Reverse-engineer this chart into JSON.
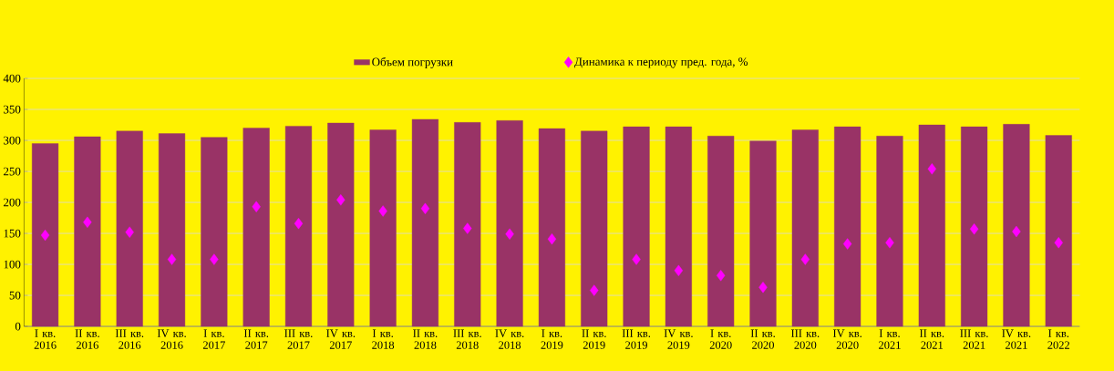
{
  "chart_data": {
    "type": "bar",
    "categories": [
      "I кв. 2016",
      "II кв. 2016",
      "III кв. 2016",
      "IV кв. 2016",
      "I кв. 2017",
      "II кв. 2017",
      "III кв. 2017",
      "IV кв. 2017",
      "I кв. 2018",
      "II кв. 2018",
      "III кв. 2018",
      "IV кв. 2018",
      "I кв. 2019",
      "II кв. 2019",
      "III кв. 2019",
      "IV кв. 2019",
      "I кв. 2020",
      "II кв. 2020",
      "III кв. 2020",
      "IV кв. 2020",
      "I кв. 2021",
      "II кв. 2021",
      "III кв. 2021",
      "IV кв. 2021",
      "I кв. 2022"
    ],
    "series": [
      {
        "name": "Объем погрузки",
        "color": "#993366",
        "values": [
          295,
          306,
          315,
          311,
          305,
          320,
          323,
          328,
          317,
          334,
          329,
          332,
          319,
          315,
          322,
          322,
          307,
          299,
          317,
          322,
          307,
          325,
          322,
          326,
          308
        ]
      },
      {
        "name": "Динамика к периоду пред. года, %",
        "type": "scatter",
        "marker": "diamond",
        "color": "#ff00ff",
        "values": [
          147,
          168,
          152,
          108,
          108,
          193,
          166,
          204,
          186,
          190,
          158,
          149,
          141,
          58,
          108,
          90,
          82,
          63,
          108,
          133,
          135,
          254,
          157,
          153,
          135
        ]
      }
    ],
    "ylim": [
      0,
      400
    ],
    "yticks": [
      0,
      50,
      100,
      150,
      200,
      250,
      300,
      350,
      400
    ],
    "grid": "y",
    "legend": "top"
  }
}
